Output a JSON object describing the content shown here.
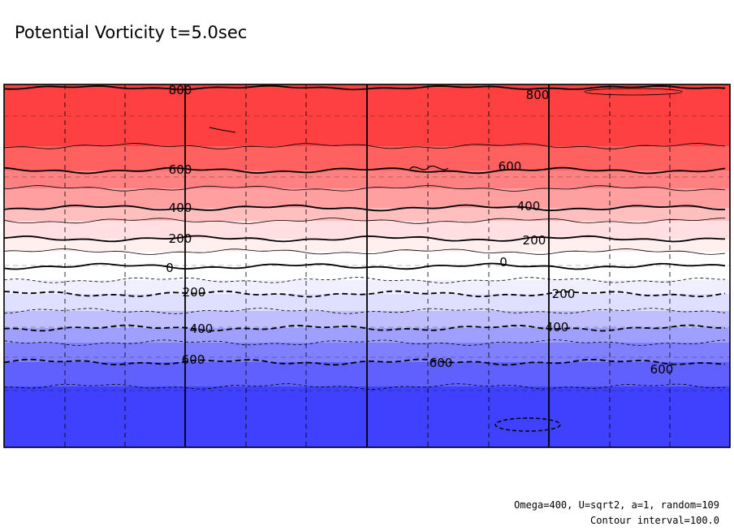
{
  "chart_data": {
    "type": "heatmap",
    "title": "Potential Vorticity t=5.0sec",
    "xlabel": "",
    "ylabel": "",
    "ylim": [
      -800,
      800
    ],
    "contour_interval": 100.0,
    "levels": [
      -800,
      -700,
      -600,
      -500,
      -400,
      -300,
      -200,
      -100,
      0,
      100,
      200,
      300,
      400,
      500,
      600,
      700,
      800
    ],
    "bands": [
      {
        "from": 700,
        "to": 800,
        "color": "#ff4040"
      },
      {
        "from": 600,
        "to": 700,
        "color": "#ff6060"
      },
      {
        "from": 500,
        "to": 600,
        "color": "#ff8080"
      },
      {
        "from": 400,
        "to": 500,
        "color": "#ff9f9f"
      },
      {
        "from": 300,
        "to": 400,
        "color": "#ffbfbf"
      },
      {
        "from": 200,
        "to": 300,
        "color": "#ffdfdf"
      },
      {
        "from": 100,
        "to": 200,
        "color": "#ffefef"
      },
      {
        "from": 0,
        "to": 100,
        "color": "#ffffff"
      },
      {
        "from": -100,
        "to": 0,
        "color": "#ffffff"
      },
      {
        "from": -200,
        "to": -100,
        "color": "#efefff"
      },
      {
        "from": -300,
        "to": -200,
        "color": "#dfdfff"
      },
      {
        "from": -400,
        "to": -300,
        "color": "#bfbfff"
      },
      {
        "from": -500,
        "to": -400,
        "color": "#9f9fff"
      },
      {
        "from": -600,
        "to": -500,
        "color": "#8080ff"
      },
      {
        "from": -700,
        "to": -600,
        "color": "#6060ff"
      },
      {
        "from": -800,
        "to": -700,
        "color": "#4040ff"
      }
    ],
    "contour_labels": [
      {
        "text": "800",
        "level": 800
      },
      {
        "text": "800",
        "level": 800
      },
      {
        "text": "600",
        "level": 600
      },
      {
        "text": "600",
        "level": 600
      },
      {
        "text": "400",
        "level": 400
      },
      {
        "text": "400",
        "level": 400
      },
      {
        "text": "200",
        "level": 200
      },
      {
        "text": "200",
        "level": 200
      },
      {
        "text": "0",
        "level": 0
      },
      {
        "text": "0",
        "level": 0
      },
      {
        "text": "200",
        "level": -200
      },
      {
        "text": "200",
        "level": -200
      },
      {
        "text": "400",
        "level": -400
      },
      {
        "text": "400",
        "level": -400
      },
      {
        "text": "600",
        "level": -600
      },
      {
        "text": "600",
        "level": -600
      },
      {
        "text": "600",
        "level": -600
      }
    ],
    "annotations": [
      "Omega=400, U=sqrt2, a=1, random=109",
      "Contour interval=100.0"
    ],
    "grid": true,
    "negative_contours": "dashed",
    "positive_contours": "solid"
  }
}
